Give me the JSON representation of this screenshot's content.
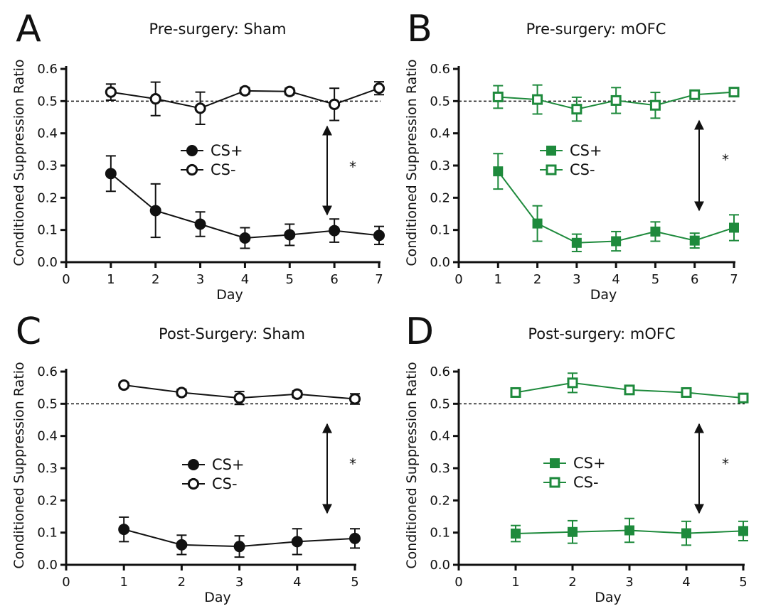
{
  "chart_data": [
    {
      "letter": "A",
      "type": "line",
      "title": "Pre-surgery: Sham",
      "xlabel": "Day",
      "ylabel": "Conditioned Suppression Ratio",
      "xlim": [
        0,
        7
      ],
      "ylim": [
        0,
        0.6
      ],
      "x_ticks": [
        "0",
        "1",
        "2",
        "3",
        "4",
        "5",
        "6",
        "7"
      ],
      "y_ticks": [
        "0.0",
        "0.1",
        "0.2",
        "0.3",
        "0.4",
        "0.5",
        "0.6"
      ],
      "reference_line": 0.5,
      "color": "#111111",
      "annotation": "*",
      "legend_position": "center",
      "series": [
        {
          "name": "CS+",
          "marker": "circle-filled",
          "x": [
            1,
            2,
            3,
            4,
            5,
            6,
            7
          ],
          "y": [
            0.275,
            0.16,
            0.118,
            0.075,
            0.085,
            0.098,
            0.083
          ],
          "err": [
            0.055,
            0.083,
            0.038,
            0.032,
            0.033,
            0.036,
            0.028
          ]
        },
        {
          "name": "CS-",
          "marker": "circle-open",
          "x": [
            1,
            2,
            3,
            4,
            5,
            6,
            7
          ],
          "y": [
            0.528,
            0.507,
            0.478,
            0.532,
            0.53,
            0.49,
            0.54
          ],
          "err": [
            0.025,
            0.052,
            0.05,
            0.01,
            0.01,
            0.05,
            0.02
          ]
        }
      ]
    },
    {
      "letter": "B",
      "type": "line",
      "title": "Pre-surgery: mOFC",
      "xlabel": "Day",
      "ylabel": "Conditioned Suppression Ratio",
      "xlim": [
        0,
        7
      ],
      "ylim": [
        0,
        0.6
      ],
      "x_ticks": [
        "0",
        "1",
        "2",
        "3",
        "4",
        "5",
        "6",
        "7"
      ],
      "y_ticks": [
        "0.0",
        "0.1",
        "0.2",
        "0.3",
        "0.4",
        "0.5",
        "0.6"
      ],
      "reference_line": 0.5,
      "color": "#1e8a3c",
      "annotation": "*",
      "legend_position": "center",
      "series": [
        {
          "name": "CS+",
          "marker": "square-filled",
          "x": [
            1,
            2,
            3,
            4,
            5,
            6,
            7
          ],
          "y": [
            0.282,
            0.12,
            0.06,
            0.065,
            0.095,
            0.067,
            0.107
          ],
          "err": [
            0.055,
            0.055,
            0.027,
            0.03,
            0.03,
            0.023,
            0.04
          ]
        },
        {
          "name": "CS-",
          "marker": "square-open",
          "x": [
            1,
            2,
            3,
            4,
            5,
            6,
            7
          ],
          "y": [
            0.513,
            0.505,
            0.475,
            0.502,
            0.487,
            0.52,
            0.528
          ],
          "err": [
            0.035,
            0.045,
            0.037,
            0.04,
            0.04,
            0.012,
            0.01
          ]
        }
      ]
    },
    {
      "letter": "C",
      "type": "line",
      "title": "Post-Surgery: Sham",
      "xlabel": "Day",
      "ylabel": "Conditioned Suppression Ratio",
      "xlim": [
        0,
        5
      ],
      "ylim": [
        0,
        0.6
      ],
      "x_ticks": [
        "0",
        "1",
        "2",
        "3",
        "4",
        "5"
      ],
      "y_ticks": [
        "0.0",
        "0.1",
        "0.2",
        "0.3",
        "0.4",
        "0.5",
        "0.6"
      ],
      "reference_line": 0.5,
      "color": "#111111",
      "annotation": "*",
      "legend_position": "center",
      "series": [
        {
          "name": "CS+",
          "marker": "circle-filled",
          "x": [
            1,
            2,
            3,
            4,
            5
          ],
          "y": [
            0.11,
            0.062,
            0.057,
            0.072,
            0.082
          ],
          "err": [
            0.038,
            0.03,
            0.033,
            0.04,
            0.03
          ]
        },
        {
          "name": "CS-",
          "marker": "circle-open",
          "x": [
            1,
            2,
            3,
            4,
            5
          ],
          "y": [
            0.558,
            0.535,
            0.518,
            0.53,
            0.515
          ],
          "err": [
            0.008,
            0.01,
            0.02,
            0.01,
            0.016
          ]
        }
      ]
    },
    {
      "letter": "D",
      "type": "line",
      "title": "Post-surgery: mOFC",
      "xlabel": "Day",
      "ylabel": "Conditioned Suppression Ratio",
      "xlim": [
        0,
        5
      ],
      "ylim": [
        0,
        0.6
      ],
      "x_ticks": [
        "0",
        "1",
        "2",
        "3",
        "4",
        "5"
      ],
      "y_ticks": [
        "0.0",
        "0.1",
        "0.2",
        "0.3",
        "0.4",
        "0.5",
        "0.6"
      ],
      "reference_line": 0.5,
      "color": "#1e8a3c",
      "annotation": "*",
      "legend_position": "center",
      "series": [
        {
          "name": "CS+",
          "marker": "square-filled",
          "x": [
            1,
            2,
            3,
            4,
            5
          ],
          "y": [
            0.097,
            0.102,
            0.107,
            0.098,
            0.105
          ],
          "err": [
            0.025,
            0.035,
            0.037,
            0.037,
            0.03
          ]
        },
        {
          "name": "CS-",
          "marker": "square-open",
          "x": [
            1,
            2,
            3,
            4,
            5
          ],
          "y": [
            0.535,
            0.565,
            0.543,
            0.535,
            0.518
          ],
          "err": [
            0.01,
            0.03,
            0.01,
            0.01,
            0.012
          ]
        }
      ]
    }
  ]
}
